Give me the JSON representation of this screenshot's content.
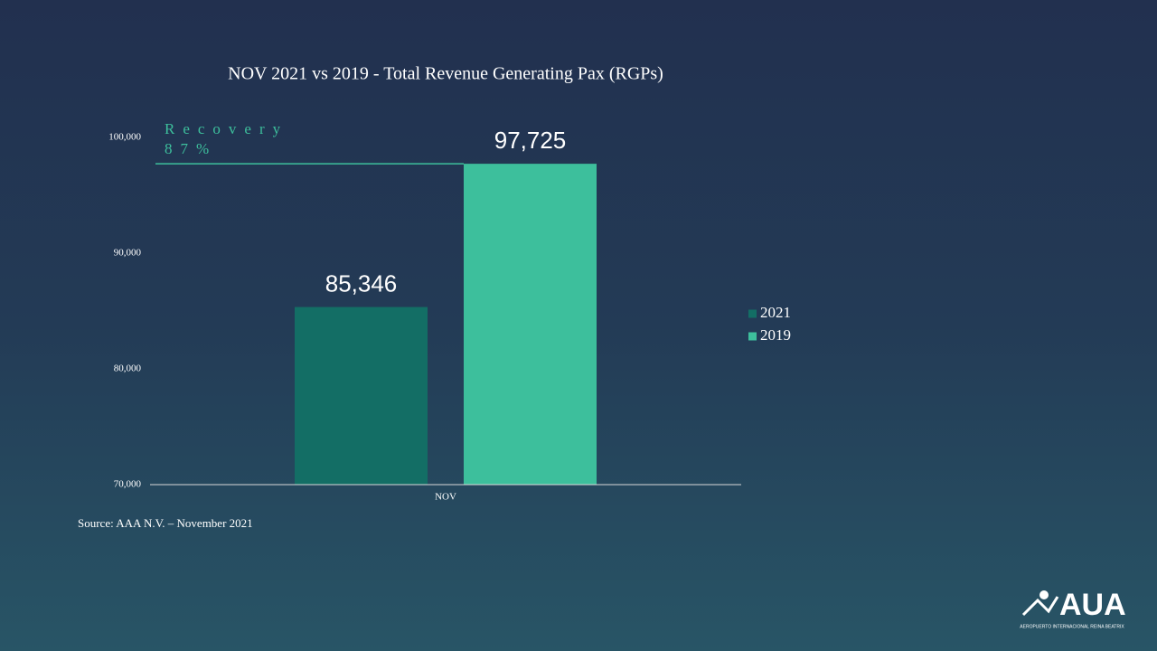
{
  "chart_data": {
    "type": "bar",
    "title": "NOV 2021 vs 2019 - Total Revenue Generating Pax (RGPs)",
    "categories": [
      "NOV"
    ],
    "series": [
      {
        "name": "2021",
        "color": "#136e65",
        "values": [
          85346
        ],
        "value_labels": [
          "85,346"
        ]
      },
      {
        "name": "2019",
        "color": "#3dbf9c",
        "values": [
          97725
        ],
        "value_labels": [
          "97,725"
        ]
      }
    ],
    "ylim": [
      70000,
      100000
    ],
    "yticks": [
      {
        "value": 70000,
        "label": "70,000"
      },
      {
        "value": 80000,
        "label": "80,000"
      },
      {
        "value": 90000,
        "label": "90,000"
      },
      {
        "value": 100000,
        "label": "100,000"
      }
    ],
    "grid": false,
    "legend": "right",
    "annotation": {
      "label": "Recovery",
      "value": "87%"
    },
    "source": "Source: AAA N.V. – November 2021"
  },
  "logo": {
    "text": "AUA",
    "subtitle": "AEROPUERTO INTERNACIONAL REINA BEATRIX"
  }
}
